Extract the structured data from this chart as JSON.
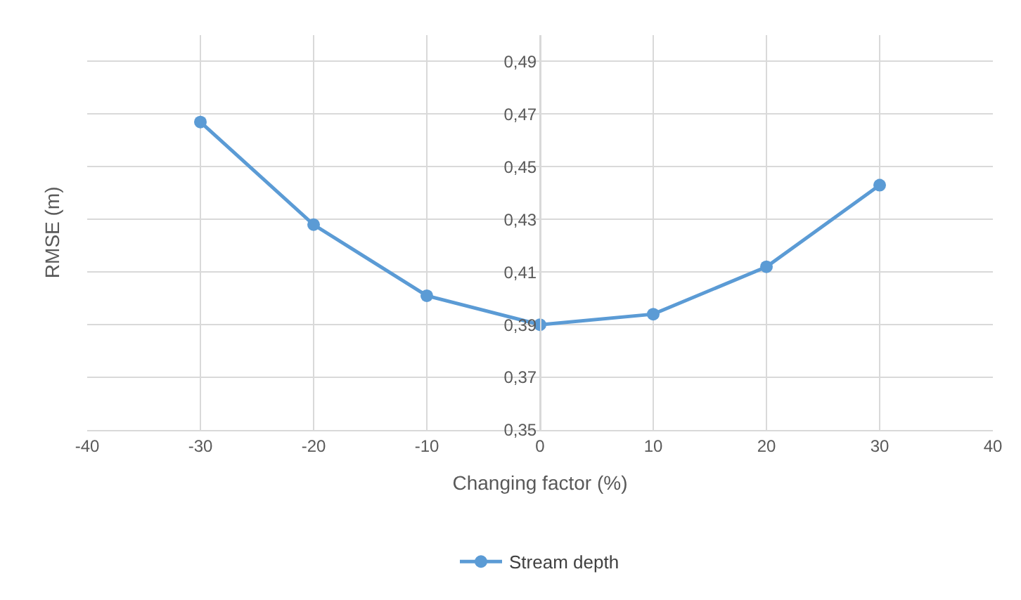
{
  "chart_data": {
    "type": "line",
    "xlabel": "Changing factor (%)",
    "ylabel": "RMSE (m)",
    "x": [
      -30,
      -20,
      -10,
      0,
      10,
      20,
      30
    ],
    "series": [
      {
        "name": "Stream depth",
        "color": "#5b9bd5",
        "values": [
          0.467,
          0.428,
          0.401,
          0.39,
          0.394,
          0.412,
          0.443
        ]
      }
    ],
    "xlim": [
      -40,
      40
    ],
    "xticks": [
      -40,
      -30,
      -20,
      -10,
      0,
      10,
      20,
      30,
      40
    ],
    "ylim": [
      0.35,
      0.5
    ],
    "yticks": [
      {
        "value": 0.35,
        "label": "0,35"
      },
      {
        "value": 0.37,
        "label": "0,37"
      },
      {
        "value": 0.39,
        "label": "0,39"
      },
      {
        "value": 0.41,
        "label": "0,41"
      },
      {
        "value": 0.43,
        "label": "0,43"
      },
      {
        "value": 0.45,
        "label": "0,45"
      },
      {
        "value": 0.47,
        "label": "0,47"
      },
      {
        "value": 0.49,
        "label": "0,49"
      }
    ],
    "grid": true,
    "legend": "bottom",
    "marker": "circle",
    "line_style": "solid"
  }
}
